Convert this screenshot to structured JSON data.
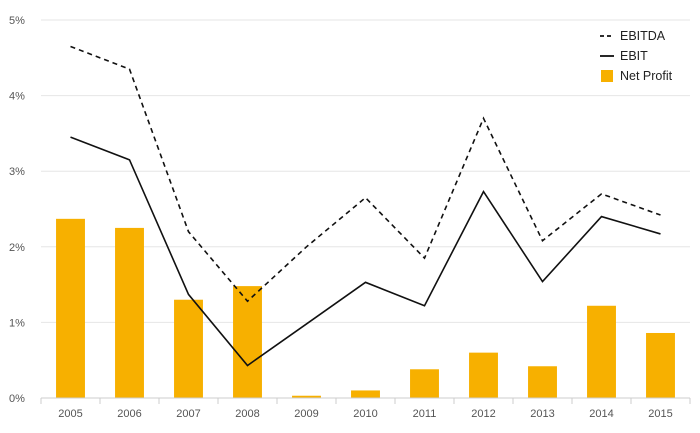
{
  "chart_data": {
    "type": "bar",
    "categories": [
      "2005",
      "2006",
      "2007",
      "2008",
      "2009",
      "2010",
      "2011",
      "2012",
      "2013",
      "2014",
      "2015"
    ],
    "ylim": [
      0,
      5
    ],
    "yticks": [
      0,
      1,
      2,
      3,
      4,
      5
    ],
    "ytick_labels": [
      "0%",
      "1%",
      "2%",
      "3%",
      "4%",
      "5%"
    ],
    "grid": true,
    "legend_position": "top-right",
    "series": [
      {
        "name": "EBITDA",
        "kind": "line",
        "style": "dashed",
        "color": "#111111",
        "values": [
          4.65,
          4.35,
          2.2,
          1.28,
          2.0,
          2.65,
          1.85,
          3.7,
          2.08,
          2.7,
          2.42
        ]
      },
      {
        "name": "EBIT",
        "kind": "line",
        "style": "solid",
        "color": "#111111",
        "values": [
          3.45,
          3.15,
          1.37,
          0.43,
          0.98,
          1.53,
          1.22,
          2.73,
          1.54,
          2.4,
          2.17
        ]
      },
      {
        "name": "Net Profit",
        "kind": "bar",
        "color": "#f7b000",
        "values": [
          2.37,
          2.25,
          1.3,
          1.48,
          0.03,
          0.1,
          0.38,
          0.6,
          0.42,
          1.22,
          0.86
        ]
      }
    ]
  }
}
